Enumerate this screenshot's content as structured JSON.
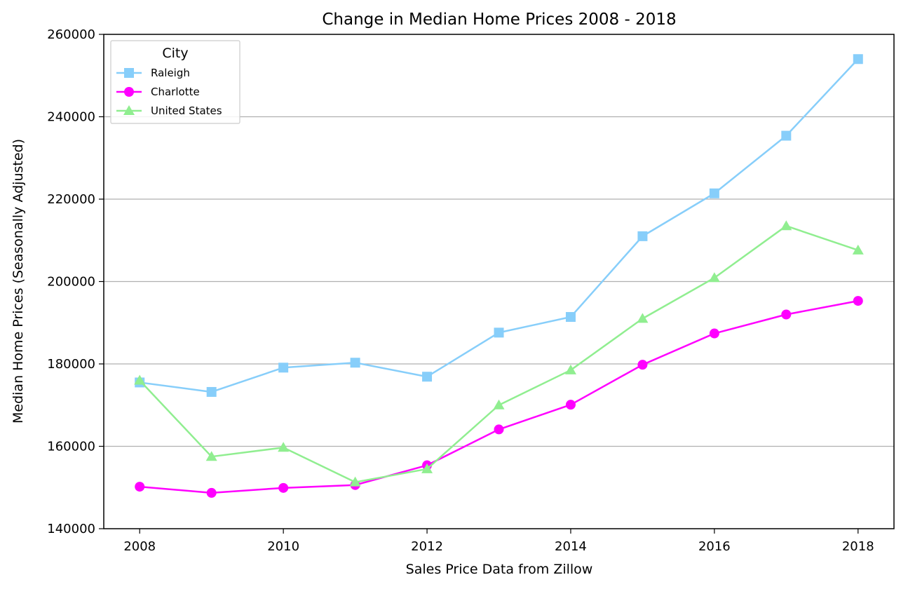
{
  "chart_data": {
    "type": "line",
    "title": "Change in Median Home Prices 2008 - 2018",
    "xlabel": "Sales Price Data from Zillow",
    "ylabel": "Median Home Prices (Seasonally Adjusted)",
    "x": [
      2008,
      2009,
      2010,
      2011,
      2012,
      2013,
      2014,
      2015,
      2016,
      2017,
      2018
    ],
    "xlim": [
      2007.5,
      2018.5
    ],
    "ylim": [
      140000,
      260000
    ],
    "xticks": [
      2008,
      2010,
      2012,
      2014,
      2016,
      2018
    ],
    "xtick_labels": [
      "2008",
      "2010",
      "2012",
      "2014",
      "2016",
      "2018"
    ],
    "yticks": [
      140000,
      160000,
      180000,
      200000,
      220000,
      240000,
      260000
    ],
    "ytick_labels": [
      "140000",
      "160000",
      "180000",
      "200000",
      "220000",
      "240000",
      "260000"
    ],
    "grid": "horizontal",
    "legend": {
      "title": "City",
      "placement": "upper-left"
    },
    "series": [
      {
        "name": "Raleigh",
        "color": "#87cefa",
        "marker": "square",
        "values": [
          175500,
          173200,
          179100,
          180300,
          176900,
          187600,
          191400,
          211000,
          221400,
          235400,
          254000
        ]
      },
      {
        "name": "Charlotte",
        "color": "#ff00ff",
        "marker": "circle",
        "values": [
          150200,
          148700,
          149900,
          150600,
          155400,
          164100,
          170100,
          179800,
          187400,
          192000,
          195300
        ]
      },
      {
        "name": "United States",
        "color": "#90ee90",
        "marker": "triangle",
        "values": [
          176000,
          157500,
          159700,
          151300,
          154500,
          170000,
          178500,
          191000,
          200900,
          213500,
          207600
        ]
      }
    ]
  }
}
